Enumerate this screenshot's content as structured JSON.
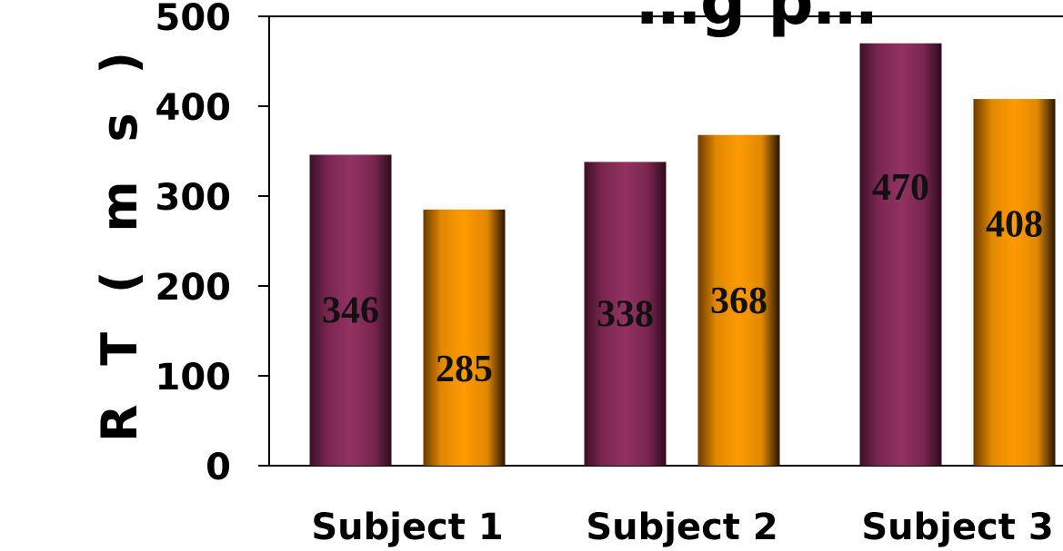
{
  "chart_data": {
    "type": "bar",
    "title": "…g p…",
    "xlabel": "",
    "ylabel": "R T ( m s )",
    "ylim": [
      0,
      500
    ],
    "yticks": [
      0,
      100,
      200,
      300,
      400,
      500
    ],
    "grid": false,
    "legend": "none",
    "categories": [
      "Subject 1",
      "Subject 2",
      "Subject 3"
    ],
    "series": [
      {
        "color": "#8f2f5e",
        "values": [
          346,
          338,
          470
        ]
      },
      {
        "color": "#f09010",
        "values": [
          285,
          368,
          408
        ]
      }
    ],
    "data_labels": true
  }
}
